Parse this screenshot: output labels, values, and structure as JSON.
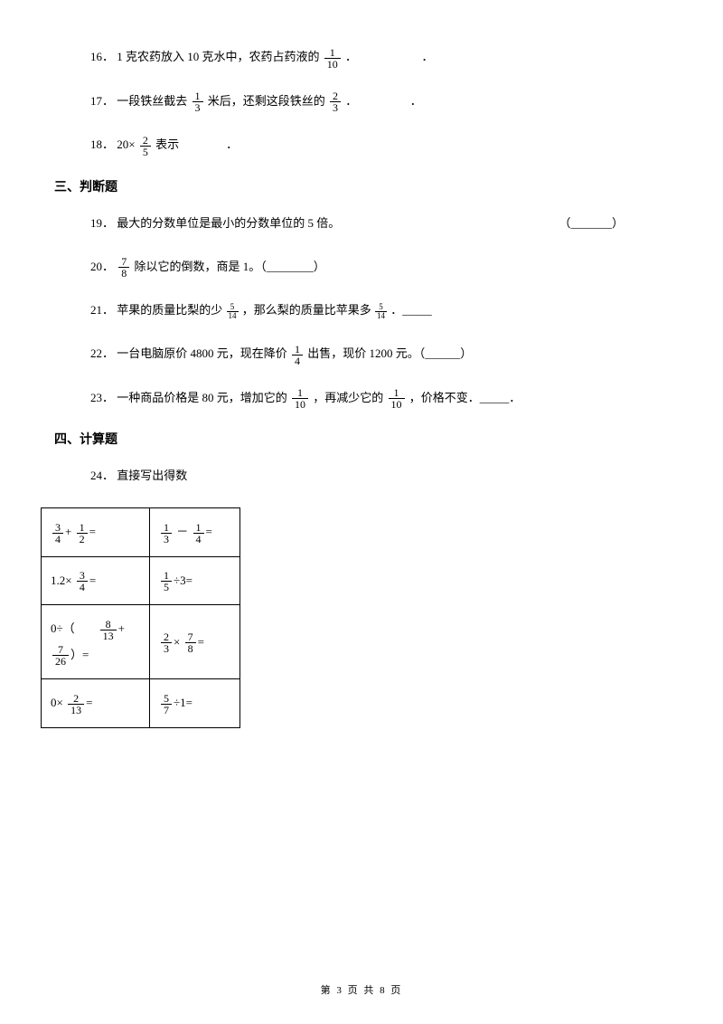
{
  "questions": {
    "q16": {
      "num": "16．",
      "text1": "1 克农药放入 10 克水中，农药占药液的",
      "frac1_num": "1",
      "frac1_den": "10",
      "period": "．　　　　　　．"
    },
    "q17": {
      "num": "17．",
      "text1": "一段铁丝截去",
      "frac1_num": "1",
      "frac1_den": "3",
      "text2": "米后，还剩这段铁丝的",
      "frac2_num": "2",
      "frac2_den": "3",
      "period": "．　　　　　．"
    },
    "q18": {
      "num": "18．",
      "text1": "20×",
      "frac1_num": "2",
      "frac1_den": "5",
      "text2": "表示　　　　．"
    },
    "q19": {
      "num": "19．",
      "text": "最大的分数单位是最小的分数单位的 5 倍。",
      "blank": "（_______）"
    },
    "q20": {
      "num": "20．",
      "frac1_num": "7",
      "frac1_den": "8",
      "text": "除以它的倒数，商是 1。（________）"
    },
    "q21": {
      "num": "21．",
      "text1": "苹果的质量比梨的少",
      "frac1_num": "5",
      "frac1_den": "14",
      "text2": "，那么梨的质量比苹果多",
      "frac2_num": "5",
      "frac2_den": "14",
      "text3": "．_____"
    },
    "q22": {
      "num": "22．",
      "text1": "一台电脑原价 4800 元，现在降价",
      "frac1_num": "1",
      "frac1_den": "4",
      "text2": "出售，现价 1200 元。（______）"
    },
    "q23": {
      "num": "23．",
      "text1": "一种商品价格是 80 元，增加它的",
      "frac1_num": "1",
      "frac1_den": "10",
      "text2": "，再减少它的",
      "frac2_num": "1",
      "frac2_den": "10",
      "text3": "，价格不变．_____．"
    },
    "q24": {
      "num": "24．",
      "text": "直接写出得数"
    }
  },
  "sections": {
    "s3": "三、判断题",
    "s4": "四、计算题"
  },
  "table": {
    "r1c1_f1n": "3",
    "r1c1_f1d": "4",
    "r1c1_op": "+",
    "r1c1_f2n": "1",
    "r1c1_f2d": "2",
    "r1c1_eq": "=",
    "r1c2_f1n": "1",
    "r1c2_f1d": "3",
    "r1c2_op": "－",
    "r1c2_f2n": "1",
    "r1c2_f2d": "4",
    "r1c2_eq": "=",
    "r2c1_t1": "1.2×",
    "r2c1_f1n": "3",
    "r2c1_f1d": "4",
    "r2c1_eq": "=",
    "r2c2_f1n": "1",
    "r2c2_f1d": "5",
    "r2c2_op": "÷3=",
    "r3c1_t1": "0÷（",
    "r3c1_f1n": "8",
    "r3c1_f1d": "13",
    "r3c1_op": "+",
    "r3c1_f2n": "7",
    "r3c1_f2d": "26",
    "r3c1_t2": "）=",
    "r3c2_f1n": "2",
    "r3c2_f1d": "3",
    "r3c2_op": "×",
    "r3c2_f2n": "7",
    "r3c2_f2d": "8",
    "r3c2_eq": "=",
    "r4c1_t1": "0×",
    "r4c1_f1n": "2",
    "r4c1_f1d": "13",
    "r4c1_eq": "=",
    "r4c2_f1n": "5",
    "r4c2_f1d": "7",
    "r4c2_op": "÷1="
  },
  "footer": "第 3 页 共 8 页"
}
